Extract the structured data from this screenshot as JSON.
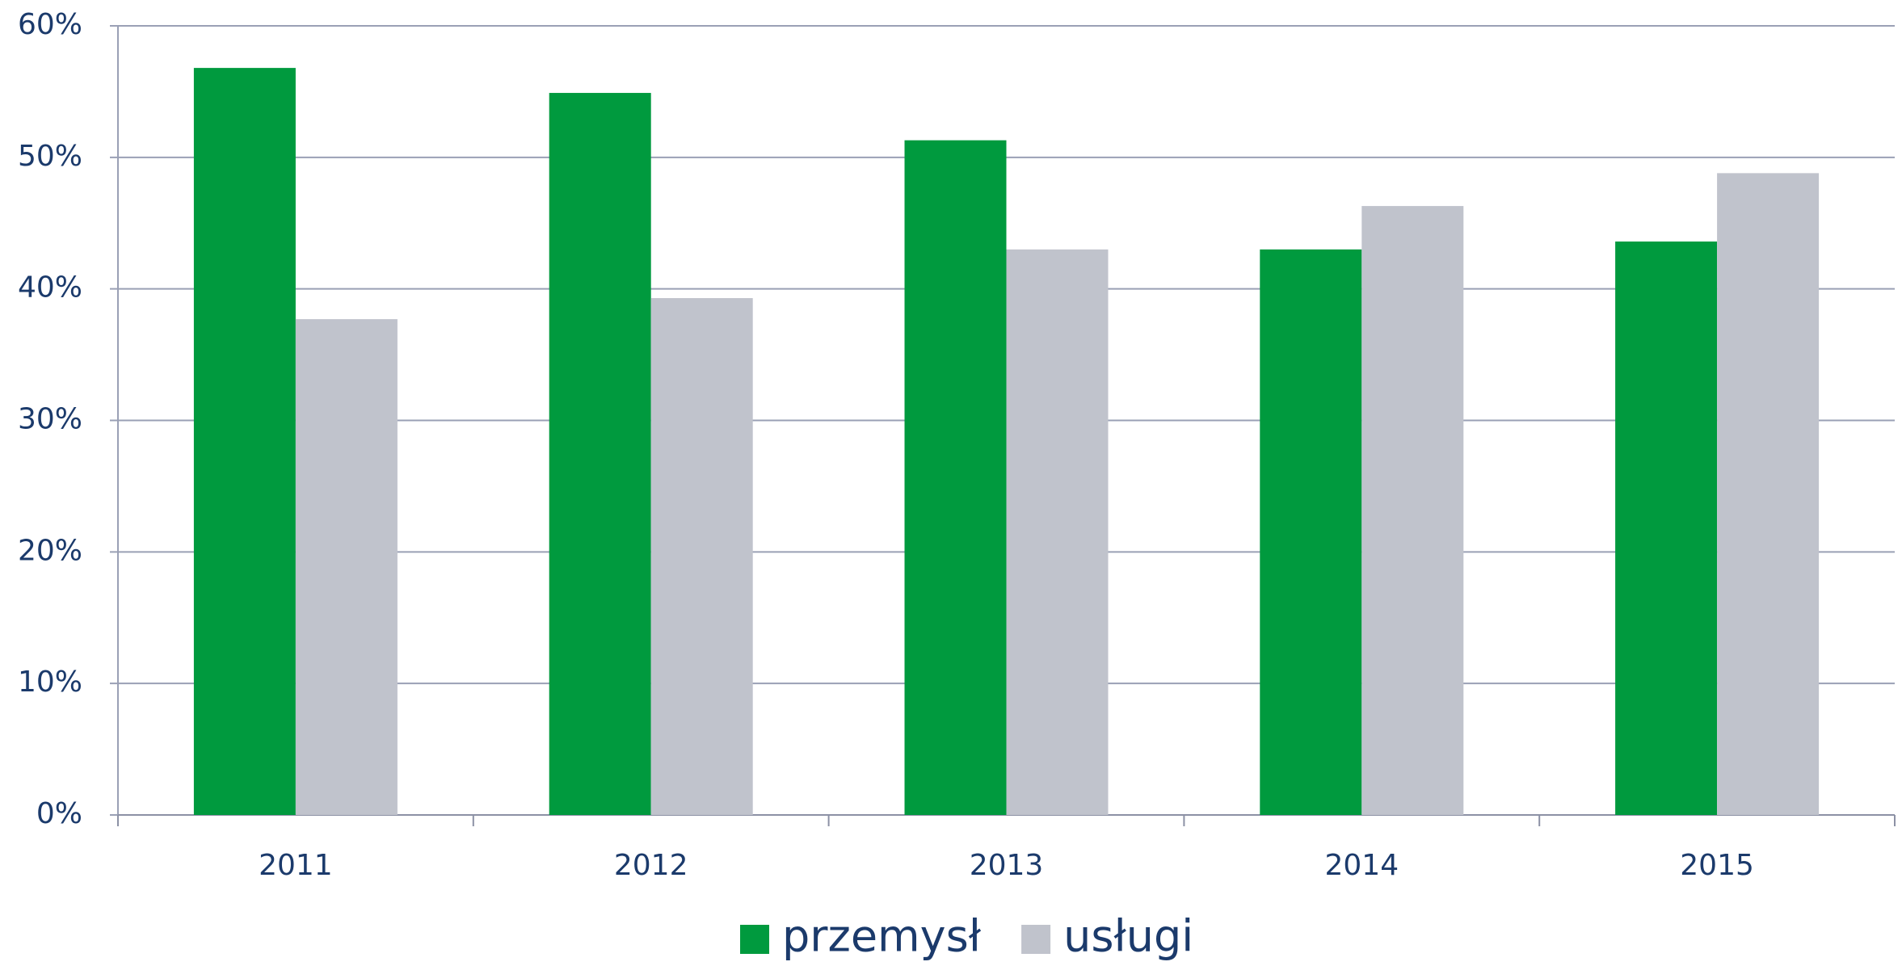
{
  "chart_data": {
    "type": "bar",
    "categories": [
      "2011",
      "2012",
      "2013",
      "2014",
      "2015"
    ],
    "series": [
      {
        "name": "przemysł",
        "color": "#009a3e",
        "values": [
          56.8,
          54.9,
          51.3,
          43.0,
          43.6
        ]
      },
      {
        "name": "usługi",
        "color": "#c0c3cc",
        "values": [
          37.7,
          39.3,
          43.0,
          46.3,
          48.8
        ]
      }
    ],
    "ylim": [
      0,
      60
    ],
    "yticks": [
      {
        "value": 0,
        "label": "0%"
      },
      {
        "value": 10,
        "label": "10%"
      },
      {
        "value": 20,
        "label": "20%"
      },
      {
        "value": 30,
        "label": "30%"
      },
      {
        "value": 40,
        "label": "40%"
      },
      {
        "value": 50,
        "label": "50%"
      },
      {
        "value": 60,
        "label": "60%"
      }
    ],
    "grid": true,
    "legend": "bottom"
  }
}
